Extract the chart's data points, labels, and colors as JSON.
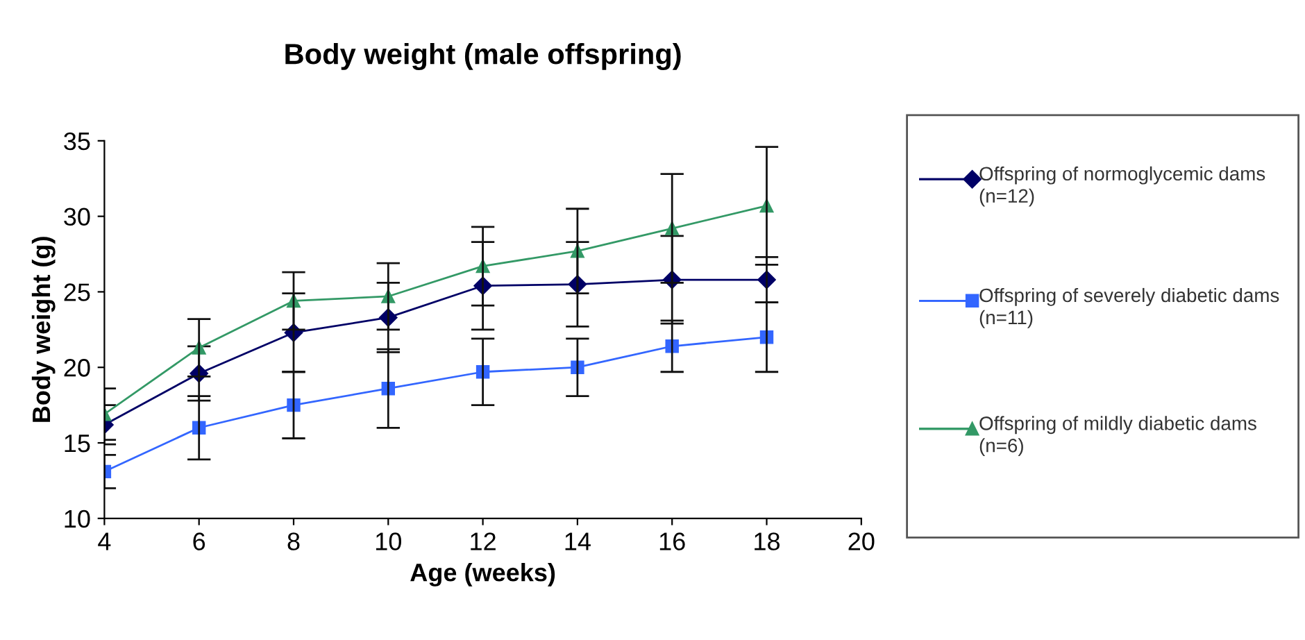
{
  "chart_data": {
    "type": "line",
    "title": "Body weight (male offspring)",
    "xlabel": "Age (weeks)",
    "ylabel": "Body weight (g)",
    "x": [
      4,
      6,
      8,
      10,
      12,
      14,
      16,
      18
    ],
    "series": [
      {
        "name": "Offspring of normoglycemic dams (n=12)",
        "color": "#000066",
        "marker": "diamond",
        "values": [
          16.2,
          19.6,
          22.3,
          23.3,
          25.4,
          25.5,
          25.8,
          25.8
        ],
        "errors": [
          1.3,
          1.8,
          2.6,
          2.3,
          2.9,
          2.8,
          2.9,
          1.5
        ]
      },
      {
        "name": "Offspring of severely diabetic dams (n=11)",
        "color": "#3366ff",
        "marker": "square",
        "values": [
          13.1,
          16.0,
          17.5,
          18.6,
          19.7,
          20.0,
          21.4,
          22.0
        ],
        "errors": [
          1.1,
          2.1,
          2.2,
          2.6,
          2.2,
          1.9,
          1.7,
          2.3
        ]
      },
      {
        "name": "Offspring of mildly diabetic dams (n=6)",
        "color": "#339966",
        "marker": "triangle",
        "values": [
          16.9,
          21.3,
          24.4,
          24.7,
          26.7,
          27.7,
          29.2,
          30.7
        ],
        "errors": [
          1.7,
          1.9,
          1.9,
          2.2,
          2.6,
          2.8,
          3.6,
          3.9
        ]
      }
    ],
    "xlim": [
      4,
      20
    ],
    "xticks": [
      4,
      6,
      8,
      10,
      12,
      14,
      16,
      18,
      20
    ],
    "ylim": [
      10,
      35
    ],
    "yticks": [
      10,
      15,
      20,
      25,
      30,
      35
    ],
    "grid": false,
    "legend": "right"
  }
}
